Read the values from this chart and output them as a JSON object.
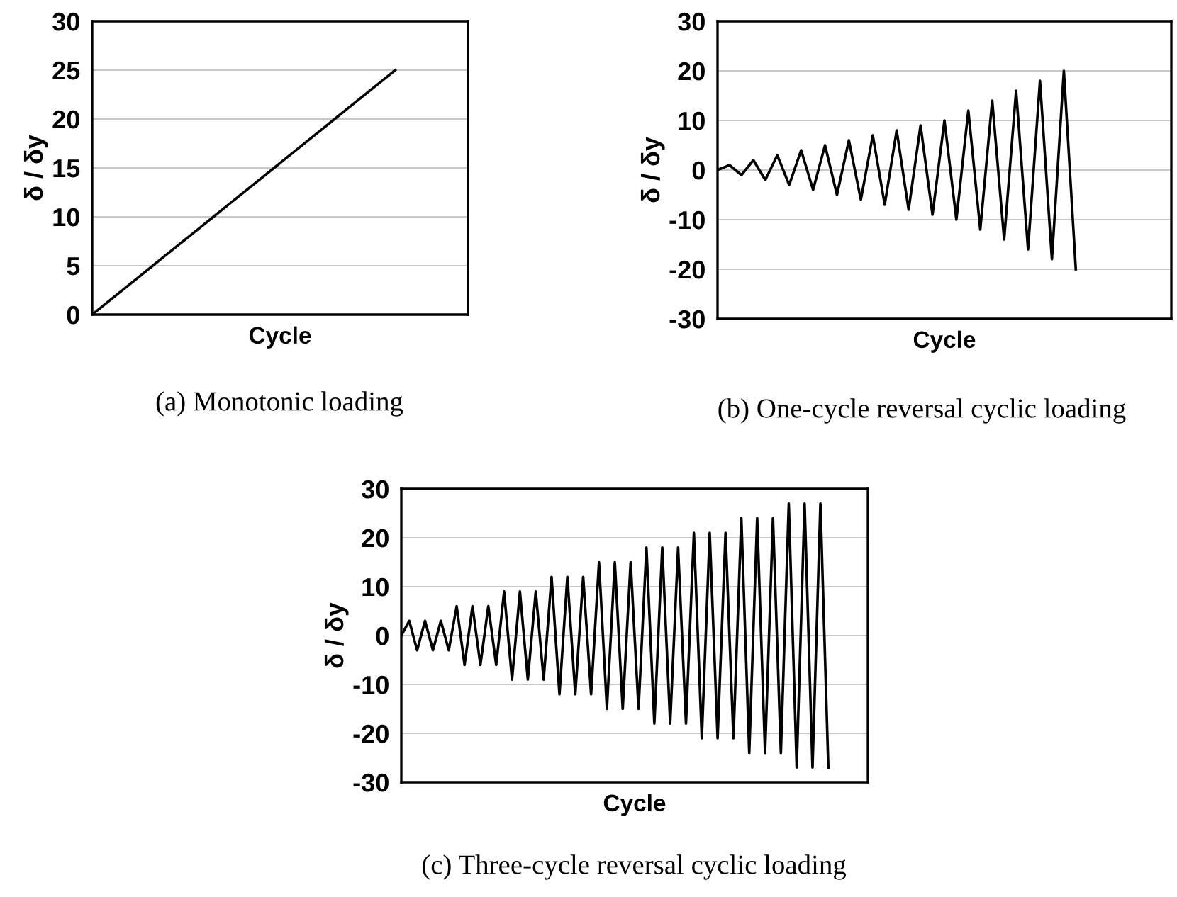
{
  "chart_data": [
    {
      "type": "line",
      "xlabel": "Cycle",
      "ylabel": "δ / δy",
      "annotations": [
        "(a) Monotonic loading"
      ],
      "categories": [
        null,
        null,
        null,
        null,
        null,
        null,
        null,
        null,
        null,
        null,
        null,
        null,
        null,
        null,
        null,
        null,
        null,
        null,
        null,
        null,
        null,
        null,
        null,
        null,
        null,
        null,
        null,
        null,
        null,
        null,
        null,
        null
      ],
      "series": [
        {
          "color": "#000000",
          "values": [
            0,
            1,
            2,
            3,
            4,
            5,
            6,
            7,
            8,
            9,
            10,
            11,
            12,
            13,
            14,
            15,
            16,
            17,
            18,
            19,
            20,
            21,
            22,
            23,
            24,
            25,
            null,
            null,
            null,
            null,
            null,
            null
          ]
        }
      ],
      "ylim": [
        0,
        30
      ],
      "yticks": [
        0,
        5,
        10,
        15,
        20,
        25,
        30
      ],
      "grid": "y",
      "tick_labels": "y",
      "legend": false,
      "marker": "none",
      "line_style": "solid"
    },
    {
      "type": "line",
      "xlabel": "Cycle",
      "ylabel": "δ / δy",
      "annotations": [
        "(b) One-cycle reversal cyclic loading"
      ],
      "categories": [
        null,
        null,
        null,
        null,
        null,
        null,
        null,
        null,
        null,
        null,
        null,
        null,
        null,
        null,
        null,
        null,
        null,
        null,
        null,
        null,
        null,
        null,
        null,
        null,
        null,
        null,
        null,
        null,
        null,
        null,
        null,
        null,
        null,
        null,
        null,
        null,
        null,
        null,
        null
      ],
      "series": [
        {
          "color": "#000000",
          "values": [
            0,
            1,
            -1,
            2,
            -2,
            3,
            -3,
            4,
            -4,
            5,
            -5,
            6,
            -6,
            7,
            -7,
            8,
            -8,
            9,
            -9,
            10,
            -10,
            12,
            -12,
            14,
            -14,
            16,
            -16,
            18,
            -18,
            20,
            -20,
            null,
            null,
            null,
            null,
            null,
            null,
            null,
            null
          ]
        }
      ],
      "ylim": [
        -30,
        30
      ],
      "yticks": [
        -30,
        -20,
        -10,
        0,
        10,
        20,
        30
      ],
      "grid": "y",
      "tick_labels": "y",
      "legend": false,
      "marker": "none",
      "line_style": "solid"
    },
    {
      "type": "line",
      "xlabel": "Cycle",
      "ylabel": "δ / δy",
      "annotations": [
        "(c) Three-cycle reversal cyclic loading"
      ],
      "categories": [
        null,
        null,
        null,
        null,
        null,
        null,
        null,
        null,
        null,
        null,
        null,
        null,
        null,
        null,
        null,
        null,
        null,
        null,
        null,
        null,
        null,
        null,
        null,
        null,
        null,
        null,
        null,
        null,
        null,
        null,
        null,
        null,
        null,
        null,
        null,
        null,
        null,
        null,
        null,
        null,
        null,
        null,
        null,
        null,
        null,
        null,
        null,
        null,
        null,
        null,
        null,
        null,
        null,
        null,
        null,
        null,
        null,
        null,
        null,
        null
      ],
      "series": [
        {
          "color": "#000000",
          "values": [
            0,
            3,
            -3,
            3,
            -3,
            3,
            -3,
            6,
            -6,
            6,
            -6,
            6,
            -6,
            9,
            -9,
            9,
            -9,
            9,
            -9,
            12,
            -12,
            12,
            -12,
            12,
            -12,
            15,
            -15,
            15,
            -15,
            15,
            -15,
            18,
            -18,
            18,
            -18,
            18,
            -18,
            21,
            -21,
            21,
            -21,
            21,
            -21,
            24,
            -24,
            24,
            -24,
            24,
            -24,
            27,
            -27,
            27,
            -27,
            27,
            -27,
            null,
            null,
            null,
            null,
            null
          ]
        }
      ],
      "ylim": [
        -30,
        30
      ],
      "yticks": [
        -30,
        -20,
        -10,
        0,
        10,
        20,
        30
      ],
      "grid": "y",
      "tick_labels": "y",
      "legend": false,
      "marker": "none",
      "line_style": "solid"
    }
  ]
}
